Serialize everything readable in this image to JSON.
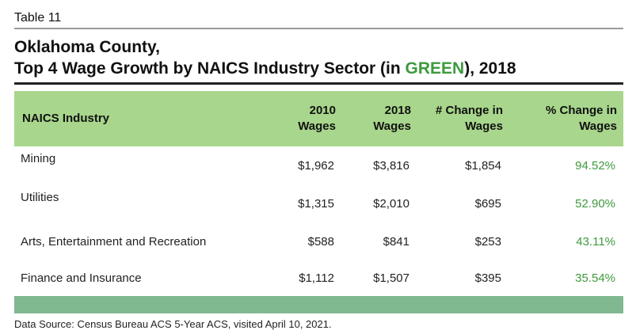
{
  "table_label": "Table 11",
  "title": {
    "line1": "Oklahoma County,",
    "line2_prefix": "Top 4 Wage Growth by NAICS Industry Sector (in ",
    "line2_highlight": "GREEN",
    "line2_suffix": "), 2018"
  },
  "columns": {
    "industry": "NAICS Industry",
    "w2010_l1": "2010",
    "w2010_l2": "Wages",
    "w2018_l1": "2018",
    "w2018_l2": "Wages",
    "change_l1": "# Change in",
    "change_l2": "Wages",
    "pct_l1": "% Change in",
    "pct_l2": "Wages"
  },
  "rows": [
    {
      "industry": "Mining",
      "w2010": "$1,962",
      "w2018": "$3,816",
      "change": "$1,854",
      "pct": "94.52%"
    },
    {
      "industry": "Utilities",
      "w2010": "$1,315",
      "w2018": "$2,010",
      "change": "$695",
      "pct": "52.90%"
    },
    {
      "industry": "Arts, Entertainment and Recreation",
      "w2010": "$588",
      "w2018": "$841",
      "change": "$253",
      "pct": "43.11%"
    },
    {
      "industry": "Finance and Insurance",
      "w2010": "$1,112",
      "w2018": "$1,507",
      "change": "$395",
      "pct": "35.54%"
    }
  ],
  "source": "Data Source: Census Bureau ACS 5-Year ACS, visited April 10, 2021.",
  "colors": {
    "header_bg": "#a8d68c",
    "footer_bg": "#80b890",
    "highlight": "#3e9a3e"
  }
}
